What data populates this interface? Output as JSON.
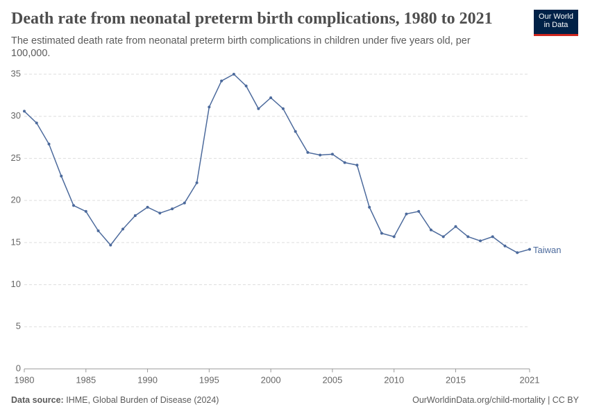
{
  "chart_data": {
    "type": "line",
    "title": "Death rate from neonatal preterm birth complications, 1980 to 2021",
    "subtitle": "The estimated death rate from neonatal preterm birth complications in children under five years old, per 100,000.",
    "source_label": "Data source:",
    "source": "IHME, Global Burden of Disease (2024)",
    "footer": "OurWorldinData.org/child-mortality | CC BY",
    "logo": [
      "Our World",
      "in Data"
    ],
    "x": [
      1980,
      1981,
      1982,
      1983,
      1984,
      1985,
      1986,
      1987,
      1988,
      1989,
      1990,
      1991,
      1992,
      1993,
      1994,
      1995,
      1996,
      1997,
      1998,
      1999,
      2000,
      2001,
      2002,
      2003,
      2004,
      2005,
      2006,
      2007,
      2008,
      2009,
      2010,
      2011,
      2012,
      2013,
      2014,
      2015,
      2016,
      2017,
      2018,
      2019,
      2020,
      2021
    ],
    "series": [
      {
        "name": "Taiwan",
        "color": "#4c6a9c",
        "values": [
          30.6,
          29.2,
          26.7,
          22.9,
          19.4,
          18.7,
          16.4,
          14.7,
          16.6,
          18.2,
          19.2,
          18.5,
          19.0,
          19.7,
          22.1,
          31.1,
          34.2,
          35.0,
          33.6,
          30.9,
          32.2,
          30.9,
          28.2,
          25.7,
          25.4,
          25.5,
          24.5,
          24.2,
          19.2,
          16.1,
          15.7,
          18.4,
          18.7,
          16.5,
          15.7,
          16.9,
          15.7,
          15.2,
          15.7,
          14.6,
          13.8,
          14.2
        ]
      }
    ],
    "xlim": [
      1980,
      2021
    ],
    "xticks": [
      1980,
      1985,
      1990,
      1995,
      2000,
      2005,
      2010,
      2015,
      2021
    ],
    "ylim": [
      0,
      35
    ],
    "yticks": [
      0,
      5,
      10,
      15,
      20,
      25,
      30,
      35
    ],
    "grid": true
  }
}
